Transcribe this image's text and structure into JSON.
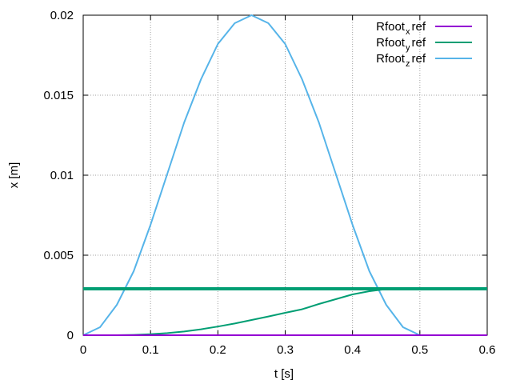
{
  "chart_data": {
    "type": "line",
    "xlabel": "t [s]",
    "ylabel": "x [m]",
    "xlim": [
      0,
      0.6
    ],
    "ylim": [
      0,
      0.02
    ],
    "xticks": [
      "0",
      "0.1",
      "0.2",
      "0.3",
      "0.4",
      "0.5",
      "0.6"
    ],
    "yticks": [
      "0",
      "0.005",
      "0.01",
      "0.015",
      "0.02"
    ],
    "grid": true,
    "legend_position": "top-right",
    "series": [
      {
        "name_base": "Rfoot",
        "name_sub": "x",
        "name_suffix": "ref",
        "color": "#9400d3",
        "x": [
          0,
          0.6
        ],
        "y": [
          0,
          0
        ]
      },
      {
        "name_base": "Rfoot",
        "name_sub": "y",
        "name_suffix": "ref",
        "color": "#009e73",
        "x": [
          0,
          0.025,
          0.05,
          0.075,
          0.1,
          0.125,
          0.15,
          0.175,
          0.2,
          0.225,
          0.25,
          0.275,
          0.3,
          0.325,
          0.35,
          0.375,
          0.4,
          0.425,
          0.45,
          0.475,
          0.5
        ],
        "y": [
          0,
          0,
          0,
          2e-05,
          6e-05,
          0.00013,
          0.00023,
          0.00037,
          0.00054,
          0.00073,
          0.00095,
          0.00117,
          0.0014,
          0.00162,
          0.00195,
          0.00225,
          0.00255,
          0.00275,
          0.00288,
          0.0029,
          0.0029
        ],
        "extra_horizontal_line": 0.0029
      },
      {
        "name_base": "Rfoot",
        "name_sub": "z",
        "name_suffix": "ref",
        "color": "#56b4e9",
        "x": [
          0,
          0.025,
          0.05,
          0.075,
          0.1,
          0.125,
          0.15,
          0.175,
          0.2,
          0.225,
          0.25,
          0.275,
          0.3,
          0.325,
          0.35,
          0.375,
          0.4,
          0.425,
          0.45,
          0.475,
          0.5
        ],
        "y": [
          0,
          0.0005,
          0.0019,
          0.004,
          0.0069,
          0.0101,
          0.0133,
          0.016,
          0.0182,
          0.0195,
          0.02,
          0.0195,
          0.0182,
          0.016,
          0.0133,
          0.0101,
          0.0069,
          0.004,
          0.0019,
          0.0005,
          0
        ]
      }
    ]
  }
}
